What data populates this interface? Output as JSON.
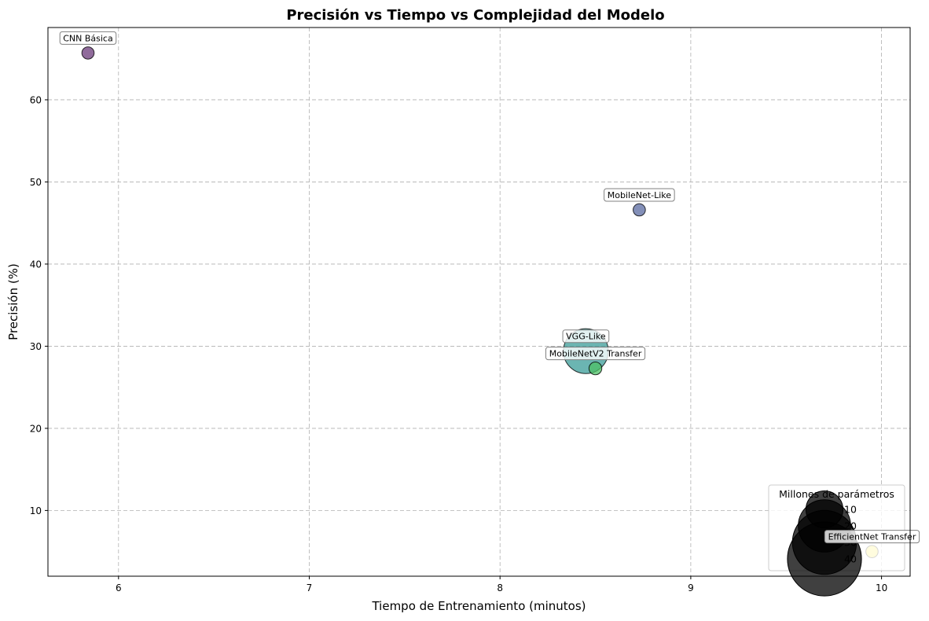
{
  "chart_data": {
    "type": "scatter",
    "title": "Precisión vs Tiempo vs Complejidad del Modelo",
    "xlabel": "Tiempo de Entrenamiento (minutos)",
    "ylabel": "Precisión (%)",
    "xlim": [
      5.63,
      10.15
    ],
    "ylim": [
      2.0,
      68.8
    ],
    "xticks": [
      6,
      7,
      8,
      9,
      10
    ],
    "yticks": [
      10,
      20,
      30,
      40,
      50,
      60
    ],
    "grid": true,
    "legend": {
      "title": "Millones de parámetros",
      "placement": "lower-right",
      "entries": [
        "10",
        "20",
        "30",
        "40"
      ],
      "sizes_millions": [
        10,
        20,
        30,
        40
      ]
    },
    "points": [
      {
        "label": "CNN Básica",
        "x": 5.84,
        "y": 65.7,
        "params_millions": 1.1,
        "color": "#6b3a7a"
      },
      {
        "label": "MobileNet-Like",
        "x": 8.73,
        "y": 46.6,
        "params_millions": 1.1,
        "color": "#5a6aa0"
      },
      {
        "label": "VGG-Like",
        "x": 8.45,
        "y": 29.4,
        "params_millions": 14.7,
        "color": "#3a9c98"
      },
      {
        "label": "MobileNetV2 Transfer",
        "x": 8.5,
        "y": 27.3,
        "params_millions": 1.2,
        "color": "#4cc064"
      },
      {
        "label": "EfficientNet Transfer",
        "x": 9.95,
        "y": 5.0,
        "params_millions": 1.1,
        "color": "#fde725"
      }
    ]
  }
}
